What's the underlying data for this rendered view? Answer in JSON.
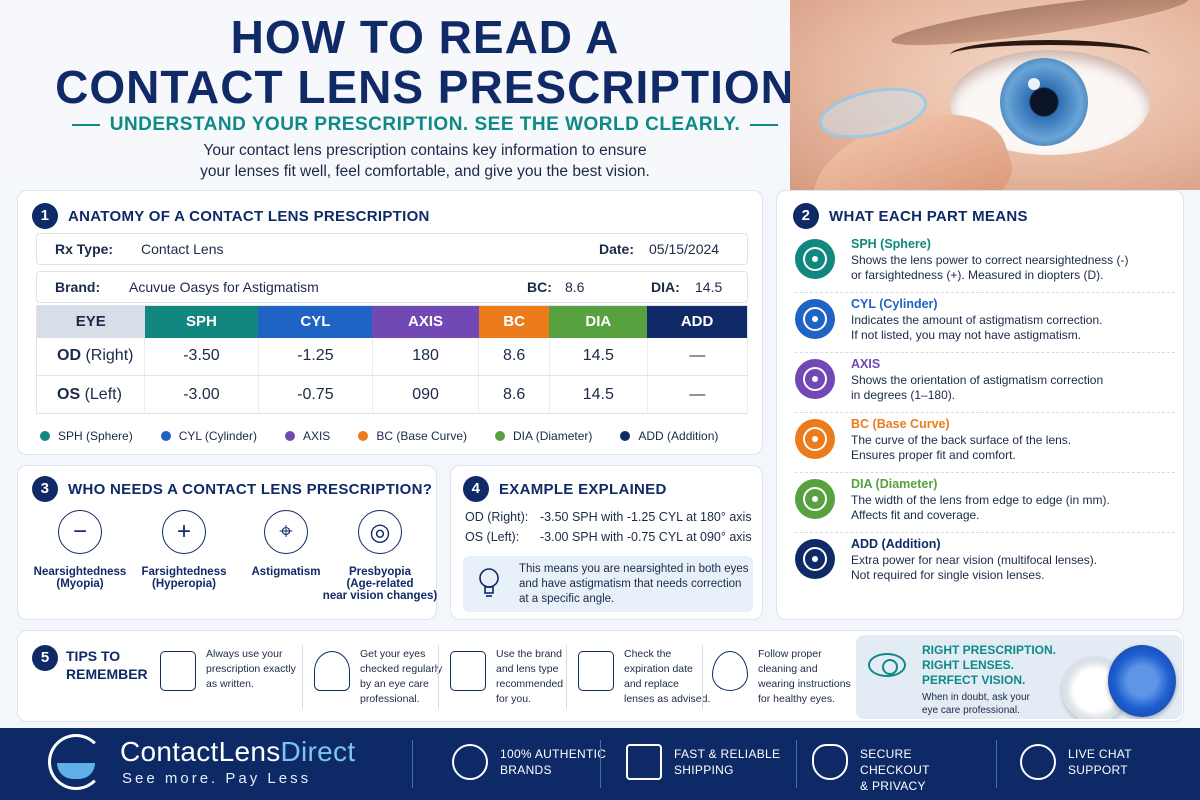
{
  "hero": {
    "title_line1": "HOW TO READ A",
    "title_line2": "CONTACT LENS PRESCRIPTION",
    "subtitle": "UNDERSTAND YOUR PRESCRIPTION. SEE THE WORLD CLEARLY.",
    "intro_line1": "Your contact lens prescription contains key information to ensure",
    "intro_line2": "your lenses fit well, feel comfortable, and give you the best vision."
  },
  "anatomy": {
    "number": "1",
    "title": "ANATOMY OF A CONTACT LENS PRESCRIPTION",
    "rx_type_label": "Rx Type:",
    "rx_type_value": "Contact Lens",
    "date_label": "Date:",
    "date_value": "05/15/2024",
    "brand_label": "Brand:",
    "brand_value": "Acuvue Oasys for Astigmatism",
    "bc_label": "BC:",
    "bc_value": "8.6",
    "dia_label": "DIA:",
    "dia_value": "14.5",
    "headers": [
      "EYE",
      "SPH",
      "CYL",
      "AXIS",
      "BC",
      "DIA",
      "ADD"
    ],
    "header_colors": [
      "#d8dee8",
      "#11877f",
      "#1f63c4",
      "#7148b4",
      "#ec7b1c",
      "#57a23f",
      "#0f2a66"
    ],
    "rows": [
      {
        "eye_code": "OD",
        "eye_name": "(Right)",
        "sph": "-3.50",
        "cyl": "-1.25",
        "axis": "180",
        "bc": "8.6",
        "dia": "14.5",
        "add": "—"
      },
      {
        "eye_code": "OS",
        "eye_name": "(Left)",
        "sph": "-3.00",
        "cyl": "-0.75",
        "axis": "090",
        "bc": "8.6",
        "dia": "14.5",
        "add": "—"
      }
    ],
    "legend": [
      {
        "label": "SPH (Sphere)",
        "color": "#11877f"
      },
      {
        "label": "CYL (Cylinder)",
        "color": "#1f63c4"
      },
      {
        "label": "AXIS",
        "color": "#7148b4"
      },
      {
        "label": "BC (Base Curve)",
        "color": "#ec7b1c"
      },
      {
        "label": "DIA (Diameter)",
        "color": "#57a23f"
      },
      {
        "label": "ADD (Addition)",
        "color": "#0f2a66"
      }
    ]
  },
  "parts": {
    "number": "2",
    "title": "WHAT EACH PART MEANS",
    "items": [
      {
        "name": "SPH (Sphere)",
        "color": "#11877f",
        "line1": "Shows the lens power to correct nearsightedness (-)",
        "line2": "or farsightedness (+). Measured in diopters (D)."
      },
      {
        "name": "CYL (Cylinder)",
        "color": "#1f63c4",
        "line1": "Indicates the amount of astigmatism correction.",
        "line2": "If not listed, you may not have astigmatism."
      },
      {
        "name": "AXIS",
        "color": "#7148b4",
        "line1": "Shows the orientation of astigmatism correction",
        "line2": "in degrees (1–180)."
      },
      {
        "name": "BC (Base Curve)",
        "color": "#ec7b1c",
        "line1": "The curve of the back surface of the lens.",
        "line2": "Ensures proper fit and comfort."
      },
      {
        "name": "DIA (Diameter)",
        "color": "#57a23f",
        "line1": "The width of the lens from edge to edge (in mm).",
        "line2": "Affects fit and coverage."
      },
      {
        "name": "ADD (Addition)",
        "color": "#0f2a66",
        "line1": "Extra power for near vision (multifocal lenses).",
        "line2": "Not required for single vision lenses."
      }
    ]
  },
  "who": {
    "number": "3",
    "title": "WHO NEEDS A CONTACT LENS PRESCRIPTION?",
    "items": [
      {
        "icon": "minus-icon",
        "glyph": "−",
        "line1": "Nearsightedness",
        "line2": "(Myopia)",
        "line3": ""
      },
      {
        "icon": "plus-icon",
        "glyph": "+",
        "line1": "Farsightedness",
        "line2": "(Hyperopia)",
        "line3": ""
      },
      {
        "icon": "crosshair-icon",
        "glyph": "⌖",
        "line1": "Astigmatism",
        "line2": "",
        "line3": ""
      },
      {
        "icon": "target-icon",
        "glyph": "◎",
        "line1": "Presbyopia",
        "line2": "(Age-related",
        "line3": "near vision changes)"
      }
    ]
  },
  "example": {
    "number": "4",
    "title": "EXAMPLE EXPLAINED",
    "od_label": "OD (Right):",
    "od_text": "-3.50 SPH with -1.25 CYL at 180° axis",
    "os_label": "OS (Left):",
    "os_text": "-3.00 SPH with -0.75 CYL at 090° axis",
    "note_line1": "This means you are nearsighted in both eyes",
    "note_line2": "and have astigmatism that needs correction",
    "note_line3": "at a specific angle."
  },
  "tips": {
    "number": "5",
    "title_line1": "TIPS TO",
    "title_line2": "REMEMBER",
    "items": [
      {
        "icon": "clipboard-checklist-icon",
        "line1": "Always use your",
        "line2": "prescription exactly",
        "line3": "as written.",
        "line4": ""
      },
      {
        "icon": "doctor-icon",
        "line1": "Get your eyes",
        "line2": "checked regularly",
        "line3": "by an eye care",
        "line4": "professional."
      },
      {
        "icon": "lens-box-icon",
        "line1": "Use the brand",
        "line2": "and lens type",
        "line3": "recommended",
        "line4": "for you."
      },
      {
        "icon": "calendar-icon",
        "line1": "Check the",
        "line2": "expiration date",
        "line3": "and replace",
        "line4": "lenses as advised."
      },
      {
        "icon": "drop-hand-icon",
        "line1": "Follow proper",
        "line2": "cleaning and",
        "line3": "wearing instructions",
        "line4": "for healthy eyes."
      }
    ],
    "promo_line1": "RIGHT PRESCRIPTION.",
    "promo_line2": "RIGHT LENSES.",
    "promo_line3": "PERFECT VISION.",
    "promo_sub1": "When in doubt, ask your",
    "promo_sub2": "eye care professional."
  },
  "footer": {
    "brand_part1": "ContactLens",
    "brand_part2": "Direct",
    "tagline": "See more. Pay Less",
    "features": [
      {
        "icon": "badge-check-icon",
        "line1": "100% AUTHENTIC",
        "line2": "BRANDS"
      },
      {
        "icon": "truck-icon",
        "line1": "FAST & RELIABLE",
        "line2": "SHIPPING"
      },
      {
        "icon": "shield-lock-icon",
        "line1": "SECURE CHECKOUT",
        "line2": "& PRIVACY"
      },
      {
        "icon": "chat-icon",
        "line1": "LIVE CHAT",
        "line2": "SUPPORT"
      }
    ]
  }
}
